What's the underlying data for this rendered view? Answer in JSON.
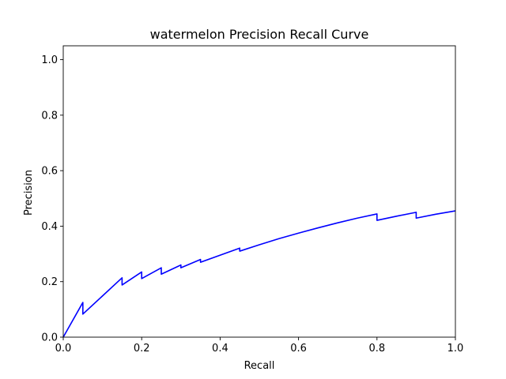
{
  "chart_data": {
    "type": "line",
    "title": "watermelon Precision Recall Curve",
    "xlabel": "Recall",
    "ylabel": "Precision",
    "xlim": [
      0.0,
      1.0
    ],
    "ylim": [
      0.0,
      1.05
    ],
    "xticks": [
      "0.0",
      "0.2",
      "0.4",
      "0.6",
      "0.8",
      "1.0"
    ],
    "yticks": [
      "0.0",
      "0.2",
      "0.4",
      "0.6",
      "0.8",
      "1.0"
    ],
    "grid": false,
    "line_color": "#0000ff",
    "series": [
      {
        "x": [
          0.0,
          0.05,
          0.05,
          0.15,
          0.15,
          0.2,
          0.2,
          0.25,
          0.25,
          0.3,
          0.3,
          0.35,
          0.35,
          0.45,
          0.45,
          0.5,
          0.55,
          0.6,
          0.65,
          0.7,
          0.75,
          0.8,
          0.8,
          0.85,
          0.9,
          0.9,
          0.95,
          1.0
        ],
        "y": [
          0.0,
          0.125,
          0.083,
          0.214,
          0.188,
          0.235,
          0.211,
          0.25,
          0.227,
          0.26,
          0.25,
          0.28,
          0.27,
          0.321,
          0.31,
          0.333,
          0.355,
          0.375,
          0.394,
          0.412,
          0.429,
          0.444,
          0.421,
          0.436,
          0.45,
          0.429,
          0.443,
          0.455
        ]
      }
    ]
  }
}
